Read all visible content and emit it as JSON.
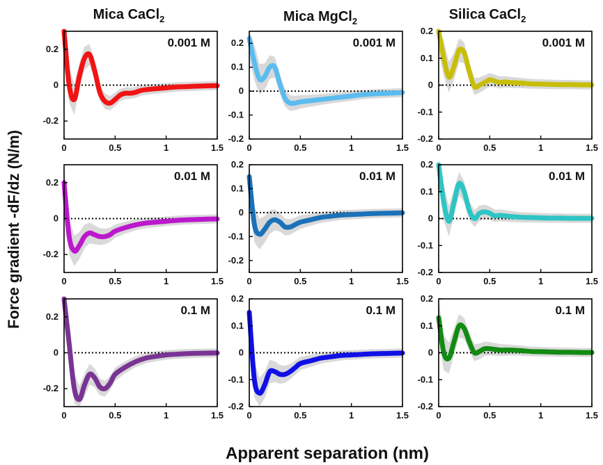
{
  "figure": {
    "column_titles": [
      {
        "base": "Mica CaCl",
        "sub": "2"
      },
      {
        "base": "Mica MgCl",
        "sub": "2"
      },
      {
        "base": "Silica CaCl",
        "sub": "2"
      }
    ],
    "ylabel": "Force gradient -dF/dz (N/m)",
    "xlabel": "Apparent separation (nm)"
  },
  "colors": {
    "envelope": "#d9d9d9",
    "zero_line": "#000000"
  },
  "chart_data": [
    {
      "type": "line",
      "panel": "mica-cacl2-0.001",
      "annotation": "0.001 M",
      "color": "#f01414",
      "xlim": [
        0,
        1.5
      ],
      "ylim": [
        -0.3,
        0.3
      ],
      "xticks": [
        "0",
        "0.5",
        "1",
        "1.5"
      ],
      "yticks": [
        "0.2",
        "0",
        "-0.2"
      ],
      "x": [
        0.0,
        0.05,
        0.1,
        0.15,
        0.2,
        0.25,
        0.3,
        0.35,
        0.4,
        0.45,
        0.5,
        0.55,
        0.6,
        0.65,
        0.7,
        0.75,
        0.8,
        0.9,
        1.0,
        1.1,
        1.2,
        1.3,
        1.4,
        1.5
      ],
      "y": [
        0.3,
        0.0,
        -0.08,
        0.05,
        0.15,
        0.17,
        0.08,
        -0.04,
        -0.09,
        -0.1,
        -0.08,
        -0.055,
        -0.045,
        -0.045,
        -0.04,
        -0.03,
        -0.025,
        -0.02,
        -0.015,
        -0.01,
        -0.008,
        -0.006,
        -0.004,
        -0.003
      ]
    },
    {
      "type": "line",
      "panel": "mica-mgcl2-0.001",
      "annotation": "0.001 M",
      "color": "#5bbcf0",
      "xlim": [
        0,
        1.5
      ],
      "ylim": [
        -0.2,
        0.25
      ],
      "xticks": [
        "0",
        "0.5",
        "1",
        "1.5"
      ],
      "yticks": [
        "0.2",
        "0.1",
        "0",
        "-0.1",
        "-0.2"
      ],
      "x": [
        0.0,
        0.05,
        0.1,
        0.15,
        0.2,
        0.25,
        0.3,
        0.35,
        0.4,
        0.45,
        0.5,
        0.6,
        0.7,
        0.8,
        0.9,
        1.0,
        1.1,
        1.2,
        1.3,
        1.4,
        1.5
      ],
      "y": [
        0.22,
        0.12,
        0.05,
        0.06,
        0.1,
        0.1,
        0.03,
        -0.03,
        -0.05,
        -0.05,
        -0.045,
        -0.04,
        -0.035,
        -0.03,
        -0.025,
        -0.02,
        -0.015,
        -0.012,
        -0.01,
        -0.008,
        -0.006
      ]
    },
    {
      "type": "line",
      "panel": "silica-cacl2-0.001",
      "annotation": "0.001 M",
      "color": "#c8be0a",
      "xlim": [
        0,
        1.5
      ],
      "ylim": [
        -0.2,
        0.2
      ],
      "xticks": [
        "0",
        "0.5",
        "1",
        "1.5"
      ],
      "yticks": [
        "0.2",
        "0.1",
        "0",
        "-0.1",
        "-0.2"
      ],
      "x": [
        0.0,
        0.05,
        0.1,
        0.15,
        0.2,
        0.25,
        0.3,
        0.35,
        0.4,
        0.45,
        0.5,
        0.55,
        0.6,
        0.65,
        0.7,
        0.8,
        0.9,
        1.0,
        1.1,
        1.2,
        1.3,
        1.4,
        1.5
      ],
      "y": [
        0.2,
        0.1,
        0.03,
        0.07,
        0.13,
        0.12,
        0.05,
        -0.005,
        0.0,
        0.01,
        0.02,
        0.015,
        0.01,
        0.012,
        0.01,
        0.008,
        0.005,
        0.004,
        0.003,
        0.002,
        0.002,
        0.001,
        0.001
      ]
    },
    {
      "type": "line",
      "panel": "mica-cacl2-0.01",
      "annotation": "0.01 M",
      "color": "#bb18cc",
      "xlim": [
        0,
        1.5
      ],
      "ylim": [
        -0.3,
        0.3
      ],
      "xticks": [
        "0",
        "0.5",
        "1",
        "1.5"
      ],
      "yticks": [
        "0.2",
        "0",
        "-0.2"
      ],
      "x": [
        0.0,
        0.05,
        0.1,
        0.15,
        0.2,
        0.25,
        0.3,
        0.35,
        0.4,
        0.45,
        0.5,
        0.6,
        0.7,
        0.8,
        0.9,
        1.0,
        1.1,
        1.2,
        1.3,
        1.4,
        1.5
      ],
      "y": [
        0.2,
        -0.1,
        -0.18,
        -0.15,
        -0.1,
        -0.08,
        -0.09,
        -0.1,
        -0.1,
        -0.09,
        -0.07,
        -0.05,
        -0.035,
        -0.025,
        -0.02,
        -0.015,
        -0.01,
        -0.007,
        -0.005,
        -0.003,
        -0.002
      ]
    },
    {
      "type": "line",
      "panel": "mica-mgcl2-0.01",
      "annotation": "0.01 M",
      "color": "#1b72b8",
      "xlim": [
        0,
        1.5
      ],
      "ylim": [
        -0.25,
        0.2
      ],
      "xticks": [
        "0",
        "0.5",
        "1",
        "1.5"
      ],
      "yticks": [
        "0.2",
        "0.1",
        "0",
        "-0.1",
        "-0.2"
      ],
      "x": [
        0.0,
        0.05,
        0.1,
        0.15,
        0.2,
        0.25,
        0.3,
        0.35,
        0.4,
        0.45,
        0.5,
        0.6,
        0.7,
        0.8,
        0.9,
        1.0,
        1.1,
        1.2,
        1.3,
        1.4,
        1.5
      ],
      "y": [
        0.15,
        -0.05,
        -0.09,
        -0.07,
        -0.04,
        -0.03,
        -0.04,
        -0.06,
        -0.06,
        -0.05,
        -0.04,
        -0.03,
        -0.02,
        -0.015,
        -0.01,
        -0.008,
        -0.006,
        -0.004,
        -0.003,
        -0.002,
        -0.001
      ]
    },
    {
      "type": "line",
      "panel": "silica-cacl2-0.01",
      "annotation": "0.01 M",
      "color": "#2fc4c4",
      "xlim": [
        0,
        1.5
      ],
      "ylim": [
        -0.2,
        0.2
      ],
      "xticks": [
        "0",
        "0.5",
        "1",
        "1.5"
      ],
      "yticks": [
        "0.2",
        "0.1",
        "0",
        "-0.1",
        "-0.2"
      ],
      "x": [
        0.0,
        0.05,
        0.1,
        0.15,
        0.2,
        0.25,
        0.3,
        0.35,
        0.4,
        0.45,
        0.5,
        0.55,
        0.6,
        0.7,
        0.8,
        0.9,
        1.0,
        1.1,
        1.2,
        1.3,
        1.4,
        1.5
      ],
      "y": [
        0.2,
        0.06,
        -0.01,
        0.06,
        0.13,
        0.1,
        0.03,
        0.0,
        0.02,
        0.025,
        0.02,
        0.01,
        0.012,
        0.008,
        0.005,
        0.004,
        0.003,
        0.002,
        0.002,
        0.001,
        0.001,
        0.001
      ]
    },
    {
      "type": "line",
      "panel": "mica-cacl2-0.1",
      "annotation": "0.1 M",
      "color": "#7a3494",
      "xlim": [
        0,
        1.5
      ],
      "ylim": [
        -0.3,
        0.3
      ],
      "xticks": [
        "0",
        "0.5",
        "1",
        "1.5"
      ],
      "yticks": [
        "0.2",
        "0",
        "-0.2"
      ],
      "x": [
        0.0,
        0.05,
        0.1,
        0.15,
        0.2,
        0.25,
        0.3,
        0.35,
        0.4,
        0.45,
        0.5,
        0.6,
        0.7,
        0.8,
        0.9,
        1.0,
        1.1,
        1.2,
        1.3,
        1.4,
        1.5
      ],
      "y": [
        0.3,
        0.05,
        -0.2,
        -0.26,
        -0.18,
        -0.12,
        -0.14,
        -0.19,
        -0.2,
        -0.17,
        -0.12,
        -0.08,
        -0.05,
        -0.03,
        -0.02,
        -0.012,
        -0.008,
        -0.005,
        -0.003,
        -0.002,
        -0.001
      ]
    },
    {
      "type": "line",
      "panel": "mica-mgcl2-0.1",
      "annotation": "0.1 M",
      "color": "#1010e6",
      "xlim": [
        0,
        1.5
      ],
      "ylim": [
        -0.2,
        0.2
      ],
      "xticks": [
        "0",
        "0.5",
        "1",
        "1.5"
      ],
      "yticks": [
        "0.2",
        "0.1",
        "0",
        "-0.1",
        "-0.2"
      ],
      "x": [
        0.0,
        0.05,
        0.1,
        0.15,
        0.2,
        0.25,
        0.3,
        0.35,
        0.4,
        0.45,
        0.5,
        0.6,
        0.7,
        0.8,
        0.9,
        1.0,
        1.1,
        1.2,
        1.3,
        1.4,
        1.5
      ],
      "y": [
        0.15,
        -0.1,
        -0.15,
        -0.12,
        -0.07,
        -0.07,
        -0.08,
        -0.08,
        -0.07,
        -0.055,
        -0.04,
        -0.03,
        -0.02,
        -0.015,
        -0.01,
        -0.008,
        -0.006,
        -0.004,
        -0.003,
        -0.002,
        -0.001
      ]
    },
    {
      "type": "line",
      "panel": "silica-cacl2-0.1",
      "annotation": "0.1 M",
      "color": "#138a13",
      "xlim": [
        0,
        1.5
      ],
      "ylim": [
        -0.2,
        0.2
      ],
      "xticks": [
        "0",
        "0.5",
        "1",
        "1.5"
      ],
      "yticks": [
        "0.2",
        "0.1",
        "0",
        "-0.1",
        "-0.2"
      ],
      "x": [
        0.0,
        0.05,
        0.1,
        0.15,
        0.2,
        0.25,
        0.3,
        0.35,
        0.4,
        0.45,
        0.5,
        0.6,
        0.7,
        0.8,
        0.9,
        1.0,
        1.1,
        1.2,
        1.3,
        1.4,
        1.5
      ],
      "y": [
        0.13,
        0.0,
        -0.02,
        0.04,
        0.1,
        0.09,
        0.04,
        0.0,
        0.005,
        0.015,
        0.015,
        0.01,
        0.01,
        0.008,
        0.005,
        0.004,
        0.003,
        0.002,
        0.002,
        0.001,
        0.001
      ]
    }
  ]
}
